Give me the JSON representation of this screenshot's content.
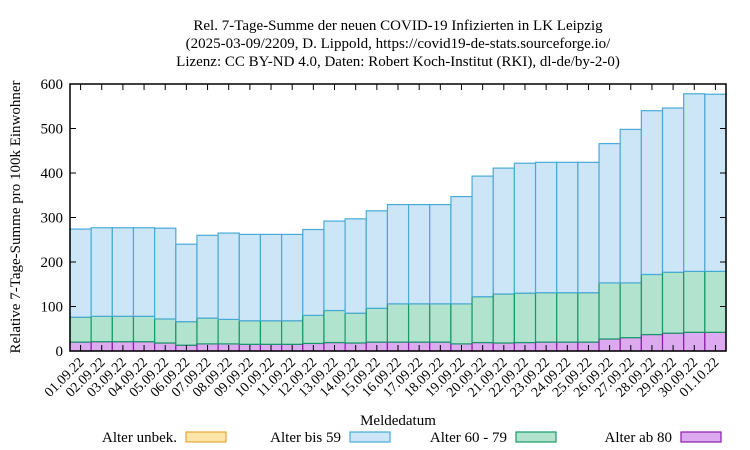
{
  "chart_data": {
    "type": "bar",
    "stacked": true,
    "title_lines": [
      "Rel. 7-Tage-Summe der neuen COVID-19 Infizierten in LK Leipzig",
      "(2025-03-09/2209, D. Lippold, https://covid19-de-stats.sourceforge.io/",
      "Lizenz: CC BY-ND 4.0, Daten: Robert Koch-Institut (RKI), dl-de/by-2-0)"
    ],
    "xlabel": "Meldedatum",
    "ylabel": "Relative 7-Tage-Summe pro 100k Einwohner",
    "ylim": [
      0,
      600
    ],
    "yticks": [
      0,
      100,
      200,
      300,
      400,
      500,
      600
    ],
    "grid": false,
    "legend_position": "bottom",
    "categories": [
      "01.09.22",
      "02.09.22",
      "03.09.22",
      "04.09.22",
      "05.09.22",
      "06.09.22",
      "07.09.22",
      "08.09.22",
      "09.09.22",
      "10.09.22",
      "11.09.22",
      "12.09.22",
      "13.09.22",
      "14.09.22",
      "15.09.22",
      "16.09.22",
      "17.09.22",
      "18.09.22",
      "19.09.22",
      "20.09.22",
      "21.09.22",
      "22.09.22",
      "23.09.22",
      "24.09.22",
      "25.09.22",
      "26.09.22",
      "27.09.22",
      "28.09.22",
      "29.09.22",
      "30.09.22",
      "01.10.22"
    ],
    "series": [
      {
        "name": "Alter unbek.",
        "fill": "#fde4a9",
        "stroke": "#e8a735",
        "values": [
          0,
          0,
          0,
          0,
          0,
          0,
          0,
          0,
          0,
          0,
          0,
          0,
          0,
          0,
          0,
          0,
          0,
          0,
          0,
          0,
          0,
          0,
          0,
          0,
          0,
          0,
          0,
          0,
          0,
          0,
          0
        ]
      },
      {
        "name": "Alter ab 80",
        "fill": "#ddaaf0",
        "stroke": "#8a1aa8",
        "values": [
          20,
          21,
          21,
          21,
          18,
          13,
          16,
          16,
          15,
          15,
          15,
          17,
          19,
          18,
          20,
          20,
          20,
          20,
          16,
          19,
          18,
          19,
          20,
          20,
          20,
          27,
          30,
          37,
          40,
          42,
          42
        ]
      },
      {
        "name": "Alter 60 - 79",
        "fill": "#b2e3cf",
        "stroke": "#159a66",
        "values": [
          56,
          57,
          57,
          57,
          54,
          53,
          58,
          55,
          53,
          53,
          53,
          63,
          72,
          67,
          76,
          86,
          86,
          86,
          90,
          103,
          110,
          111,
          111,
          111,
          111,
          126,
          123,
          135,
          137,
          137,
          137
        ]
      },
      {
        "name": "Alter bis 59",
        "fill": "#cce6f8",
        "stroke": "#4aaad6",
        "values": [
          198,
          199,
          199,
          199,
          204,
          174,
          186,
          194,
          194,
          194,
          194,
          193,
          201,
          212,
          219,
          223,
          223,
          223,
          241,
          271,
          283,
          292,
          293,
          293,
          293,
          313,
          345,
          368,
          369,
          399,
          398
        ]
      }
    ],
    "legend": [
      "Alter unbek.",
      "Alter bis 59",
      "Alter 60 - 79",
      "Alter ab 80"
    ]
  }
}
